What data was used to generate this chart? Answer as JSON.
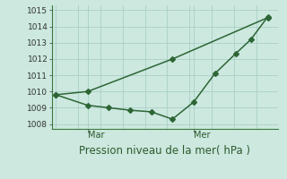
{
  "xlabel": "Pression niveau de la mer( hPa )",
  "background_color": "#cce8df",
  "grid_color": "#aacfc6",
  "line_color": "#2d6535",
  "spine_color": "#3a7a3a",
  "ylim": [
    1007.7,
    1015.3
  ],
  "yticks": [
    1008,
    1009,
    1010,
    1011,
    1012,
    1013,
    1014,
    1015
  ],
  "line1_x": [
    0,
    1.5,
    5.5,
    10
  ],
  "line1_y": [
    1009.8,
    1010.0,
    1012.0,
    1014.55
  ],
  "line2_x": [
    0,
    1.5,
    2.5,
    3.5,
    4.5,
    5.5,
    6.5,
    7.5,
    8.5,
    9.2,
    10
  ],
  "line2_y": [
    1009.8,
    1009.15,
    1009.0,
    1008.85,
    1008.75,
    1008.3,
    1009.35,
    1011.1,
    1012.35,
    1013.2,
    1014.6
  ],
  "mar_x": 1.5,
  "mer_x": 6.5,
  "xlim": [
    -0.2,
    10.5
  ],
  "marker_size": 3,
  "linewidth": 1.1,
  "xlabel_fontsize": 8.5,
  "ytick_fontsize": 6.5,
  "day_fontsize": 7
}
